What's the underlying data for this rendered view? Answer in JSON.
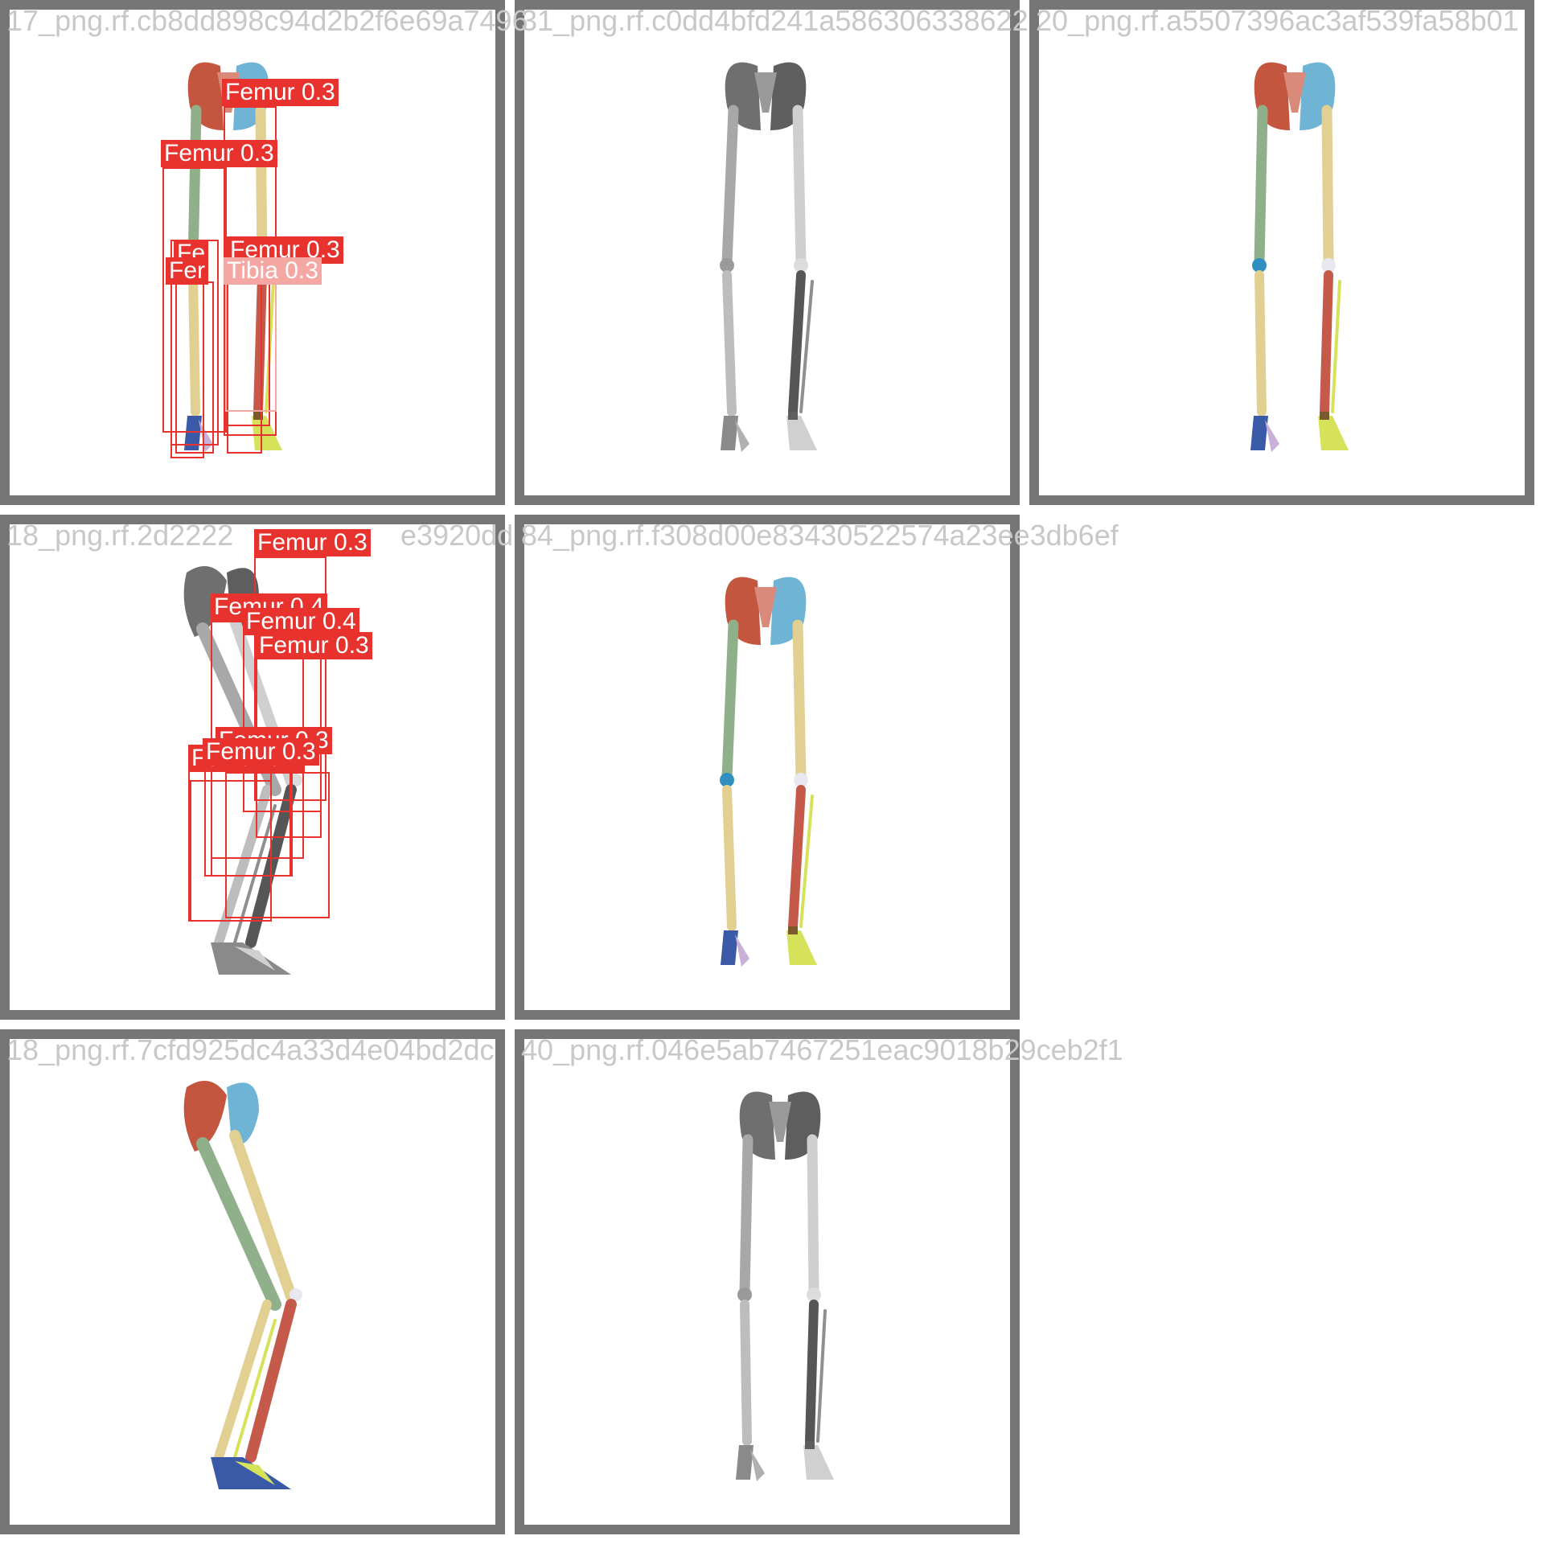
{
  "grid": {
    "background": "#ffffff",
    "frame_color": "#767676",
    "filename_color": "#c8c8c8",
    "detection_color": "#e8322e",
    "detection_light_color": "#f4a7a3"
  },
  "tiles": [
    {
      "filename": "17_png.rf.cb8dd898c94d2b2f6e69a7496",
      "style": "colored",
      "pose": "front-narrow",
      "detections": [
        {
          "label": "Femur 0.3"
        },
        {
          "label": "Femur 0.3"
        },
        {
          "label": "Femur 0.3"
        },
        {
          "label": "Tibia 0.3"
        },
        {
          "label": "Fe"
        },
        {
          "label": "Fer"
        }
      ]
    },
    {
      "filename": "31_png.rf.c0dd4bfd241a586306338622",
      "style": "grayscale",
      "pose": "front-wide",
      "detections": []
    },
    {
      "filename": "20_png.rf.a5507396ac3af539fa58b01",
      "style": "colored",
      "pose": "front-narrow-right",
      "detections": []
    },
    {
      "filename": "18_png.rf.2d2222",
      "filename_tail": "e3920dd",
      "style": "grayscale",
      "pose": "side-view",
      "detections": [
        {
          "label": "Femur 0.3"
        },
        {
          "label": "Femur 0.4"
        },
        {
          "label": "Femur 0.4"
        },
        {
          "label": "Femur 0.3"
        },
        {
          "label": "Femur 0.3"
        },
        {
          "label": "Femur 0.3"
        },
        {
          "label": "Femur 0.4"
        }
      ]
    },
    {
      "filename": "84_png.rf.f308d00e83430522574a23ee3db6ef",
      "style": "colored",
      "pose": "front-wide",
      "detections": []
    },
    {
      "filename": "18_png.rf.7cfd925dc4a33d4e04bd2dc",
      "style": "colored",
      "pose": "side-view",
      "detections": []
    },
    {
      "filename": "40_png.rf.046e5ab7467251eac9018b29ceb2f1",
      "style": "grayscale",
      "pose": "front-narrow-right",
      "detections": []
    }
  ]
}
